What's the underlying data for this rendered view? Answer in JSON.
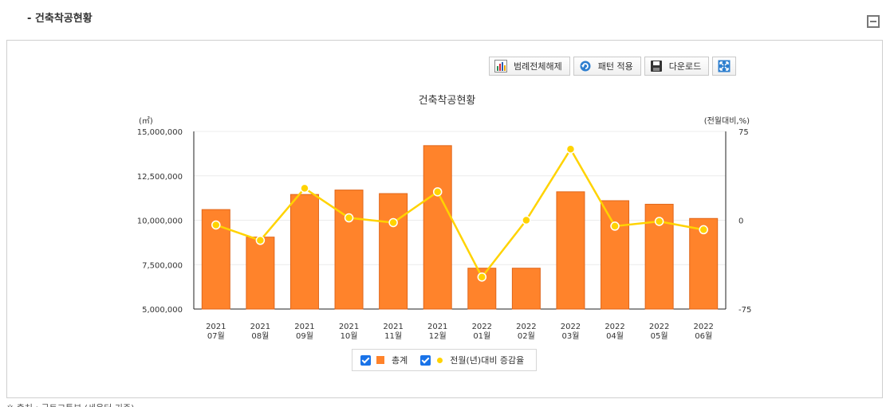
{
  "section": {
    "title": "- 건축착공현황"
  },
  "toolbar": {
    "legend_toggle_label": "범례전체해제",
    "pattern_label": "패턴 적용",
    "download_label": "다운로드"
  },
  "legend": {
    "bar_label": "총계",
    "line_label": "전월(년)대비 증감율"
  },
  "colors": {
    "bar": "#ff832b",
    "bar_stroke": "#e0661a",
    "line": "#ffd300",
    "checkbox": "#1a73e8"
  },
  "chart_data": {
    "type": "bar+line",
    "title": "건축착공현황",
    "y_left_unit": "(㎡)",
    "y_right_unit": "(전월대비,%)",
    "ylim_left": [
      5000000,
      15000000
    ],
    "ylim_right": [
      -75,
      75
    ],
    "y_left_ticks": [
      "15,000,000",
      "12,500,000",
      "10,000,000",
      "7,500,000",
      "5,000,000"
    ],
    "y_right_ticks": [
      "75",
      "0",
      "-75"
    ],
    "categories": [
      [
        "2021",
        "07월"
      ],
      [
        "2021",
        "08월"
      ],
      [
        "2021",
        "09월"
      ],
      [
        "2021",
        "10월"
      ],
      [
        "2021",
        "11월"
      ],
      [
        "2021",
        "12월"
      ],
      [
        "2022",
        "01월"
      ],
      [
        "2022",
        "02월"
      ],
      [
        "2022",
        "03월"
      ],
      [
        "2022",
        "04월"
      ],
      [
        "2022",
        "05월"
      ],
      [
        "2022",
        "06월"
      ]
    ],
    "series": [
      {
        "name": "총계",
        "type": "bar",
        "values": [
          10600000,
          9050000,
          11450000,
          11700000,
          11500000,
          14200000,
          7300000,
          7300000,
          11600000,
          11100000,
          10900000,
          10100000
        ]
      },
      {
        "name": "전월(년)대비 증감율",
        "type": "line",
        "values": [
          -4,
          -17,
          27,
          2,
          -2,
          24,
          -48,
          0,
          60,
          -5,
          -1,
          -8
        ]
      }
    ],
    "grid": true,
    "legend_position": "bottom"
  },
  "bottom_strip_text": "※ 출처 : 국토교통부 (세움터 기준)"
}
